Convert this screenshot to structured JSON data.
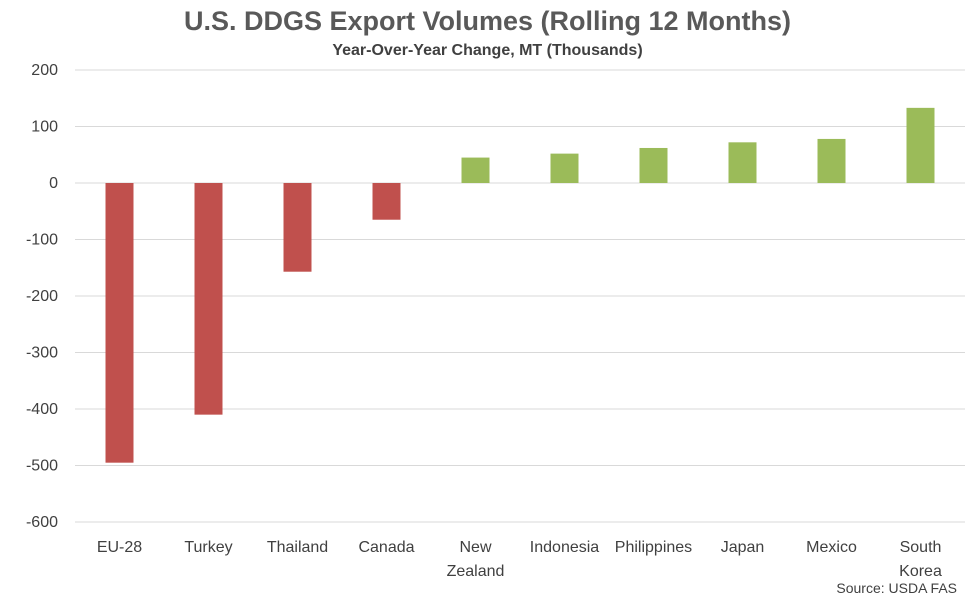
{
  "chart_data": {
    "type": "bar",
    "title": "U.S. DDGS Export Volumes (Rolling 12 Months)",
    "subtitle": "Year-Over-Year Change, MT (Thousands)",
    "source": "Source: USDA FAS",
    "categories": [
      [
        "EU-28"
      ],
      [
        "Turkey"
      ],
      [
        "Thailand"
      ],
      [
        "Canada"
      ],
      [
        "New",
        "Zealand"
      ],
      [
        "Indonesia"
      ],
      [
        "Philippines"
      ],
      [
        "Japan"
      ],
      [
        "Mexico"
      ],
      [
        "South",
        "Korea"
      ]
    ],
    "values": [
      -495,
      -410,
      -157,
      -65,
      45,
      52,
      62,
      72,
      78,
      133
    ],
    "ylim": [
      -600,
      200
    ],
    "yticks": [
      200,
      100,
      0,
      -100,
      -200,
      -300,
      -400,
      -500,
      -600
    ],
    "grid": true,
    "colors": {
      "negative": "#C0504D",
      "positive": "#9BBB59",
      "grid": "#D9D9D9"
    }
  }
}
